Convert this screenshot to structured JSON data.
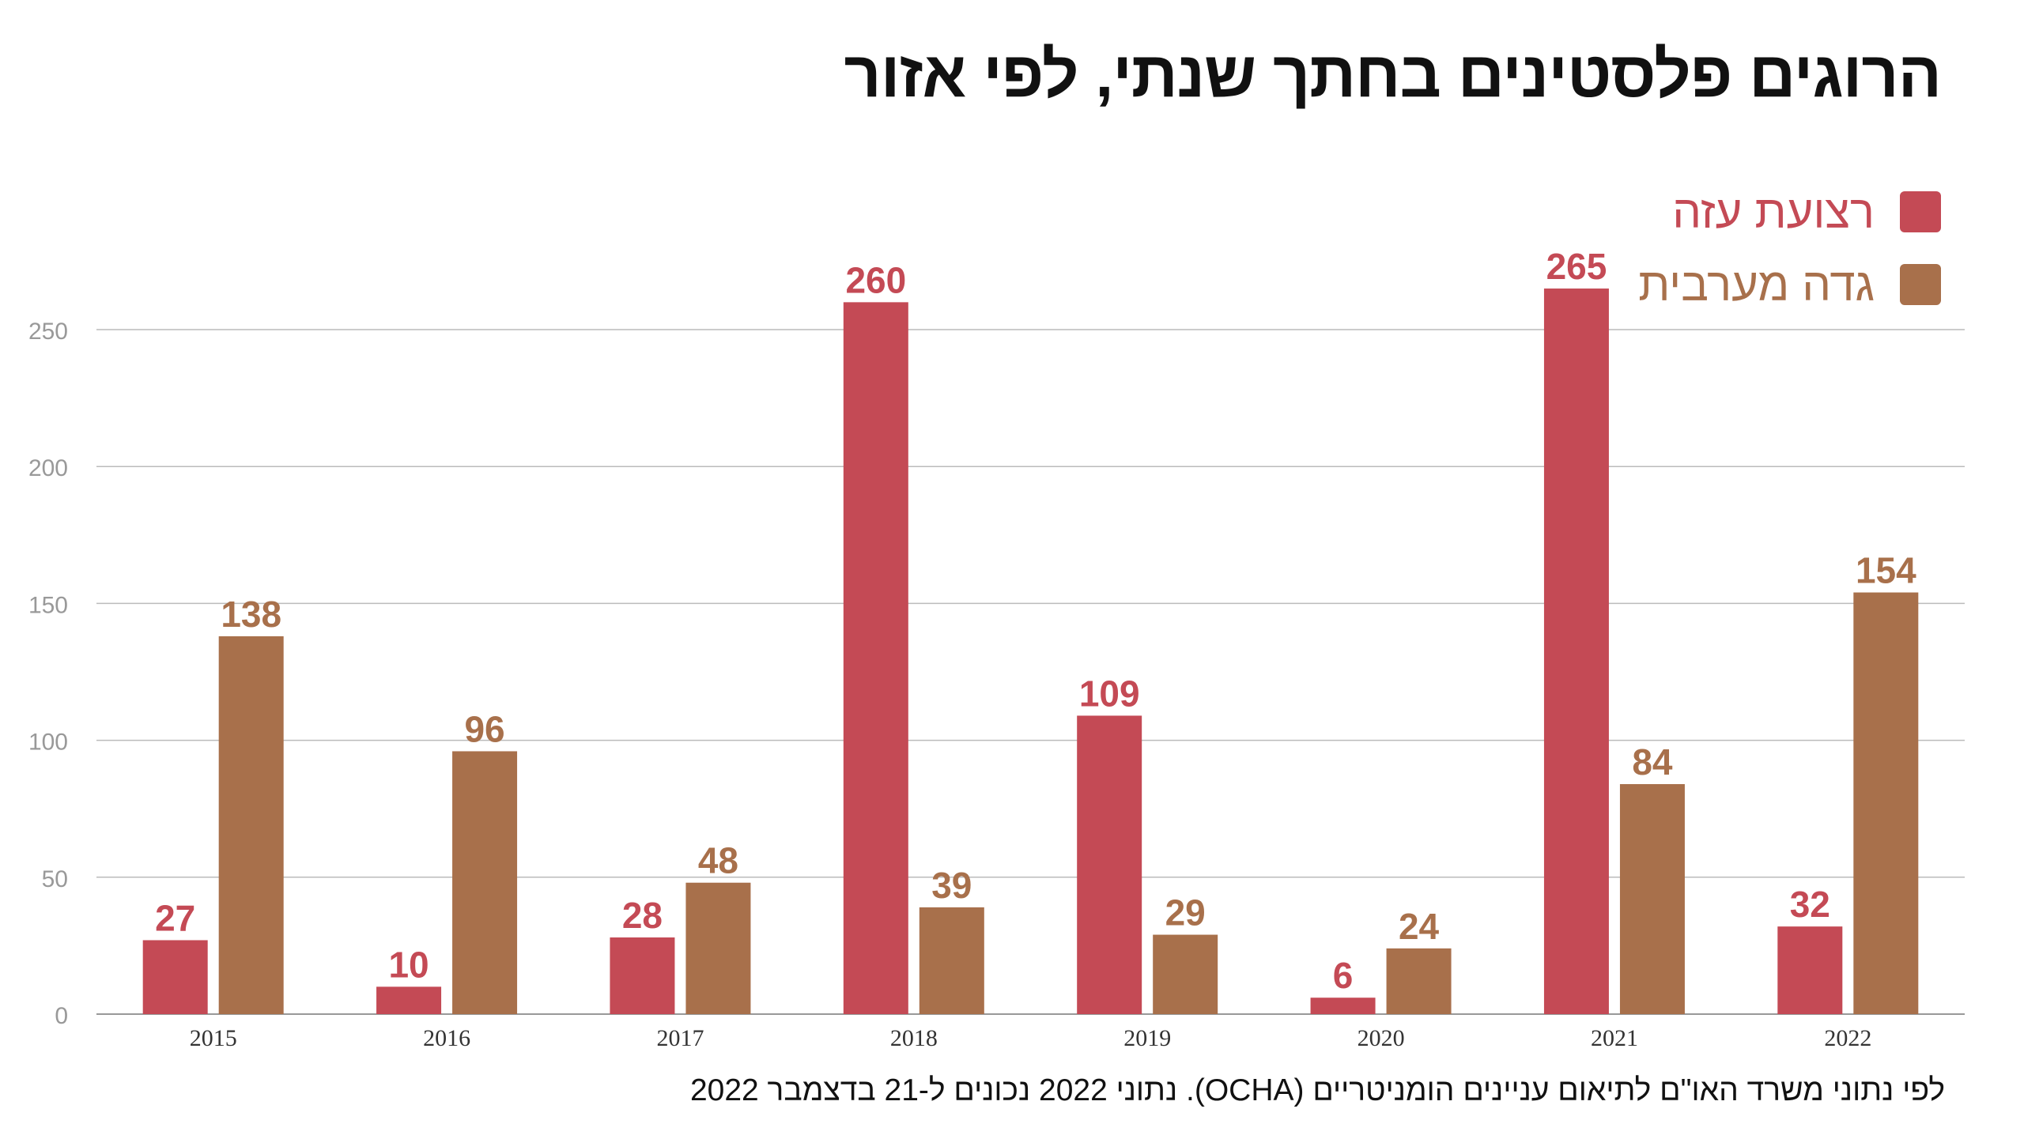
{
  "title": "הרוגים פלסטינים בחתך שנתי, לפי אזור",
  "footnote": "לפי נתוני משרד האו\"ם לתיאום עניינים הומניטריים (OCHA). נתוני 2022 נכונים ל-21 בדצמבר 2022",
  "legend": [
    {
      "label": "רצועת עזה",
      "color": "#c44a55"
    },
    {
      "label": "גדה מערבית",
      "color": "#a8704b"
    }
  ],
  "chart_data": {
    "type": "bar",
    "categories": [
      "2015",
      "2016",
      "2017",
      "2018",
      "2019",
      "2020",
      "2021",
      "2022"
    ],
    "series": [
      {
        "name": "רצועת עזה",
        "color": "#c44a55",
        "values": [
          27,
          10,
          28,
          260,
          109,
          6,
          265,
          32
        ]
      },
      {
        "name": "גדה מערבית",
        "color": "#a8704b",
        "values": [
          138,
          96,
          48,
          39,
          29,
          24,
          84,
          154
        ]
      }
    ],
    "yticks": [
      0,
      50,
      100,
      150,
      200,
      250
    ],
    "ylim": [
      0,
      250
    ],
    "grid": true,
    "data_labels": true,
    "legend_position": "top-right"
  }
}
